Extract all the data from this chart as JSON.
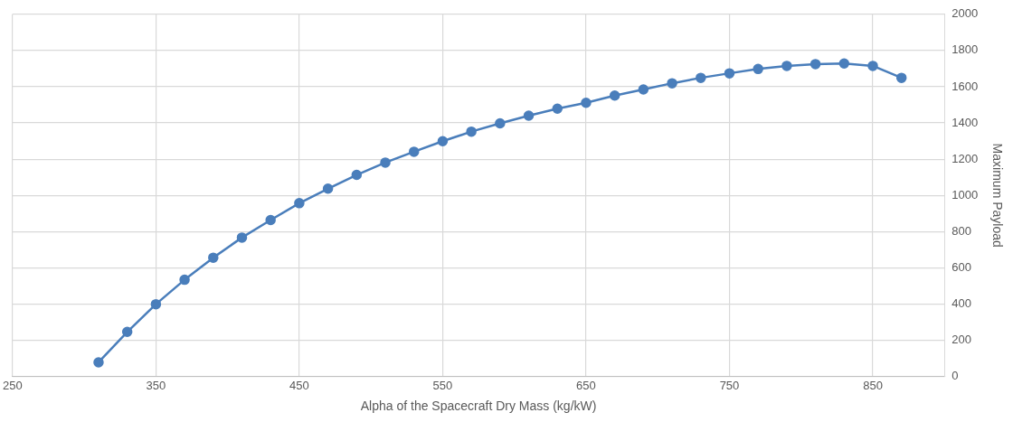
{
  "chart_data": {
    "type": "line",
    "xlabel": "Alpha of the Spacecraft Dry Mass (kg/kW)",
    "ylabel": "Maximum Payload",
    "x": [
      310,
      330,
      350,
      370,
      390,
      410,
      430,
      450,
      470,
      490,
      510,
      530,
      550,
      570,
      590,
      610,
      630,
      650,
      670,
      690,
      710,
      730,
      750,
      770,
      790,
      810,
      830,
      850,
      870
    ],
    "series": [
      {
        "color": "#4a7ebb",
        "values": [
          78,
          246,
          399,
          534,
          656,
          767,
          864,
          957,
          1037,
          1113,
          1181,
          1241,
          1299,
          1352,
          1398,
          1440,
          1479,
          1511,
          1551,
          1585,
          1619,
          1649,
          1674,
          1698,
          1715,
          1725,
          1728,
          1715,
          1649
        ]
      }
    ],
    "xlim": [
      250,
      900
    ],
    "xticks": [
      250,
      350,
      450,
      550,
      650,
      750,
      850
    ],
    "ylim": [
      0,
      2000
    ],
    "yticks": [
      0,
      200,
      400,
      600,
      800,
      1000,
      1200,
      1400,
      1600,
      1800,
      2000
    ],
    "grid": true,
    "legend": false,
    "marker": "circle",
    "line_style": "solid"
  }
}
